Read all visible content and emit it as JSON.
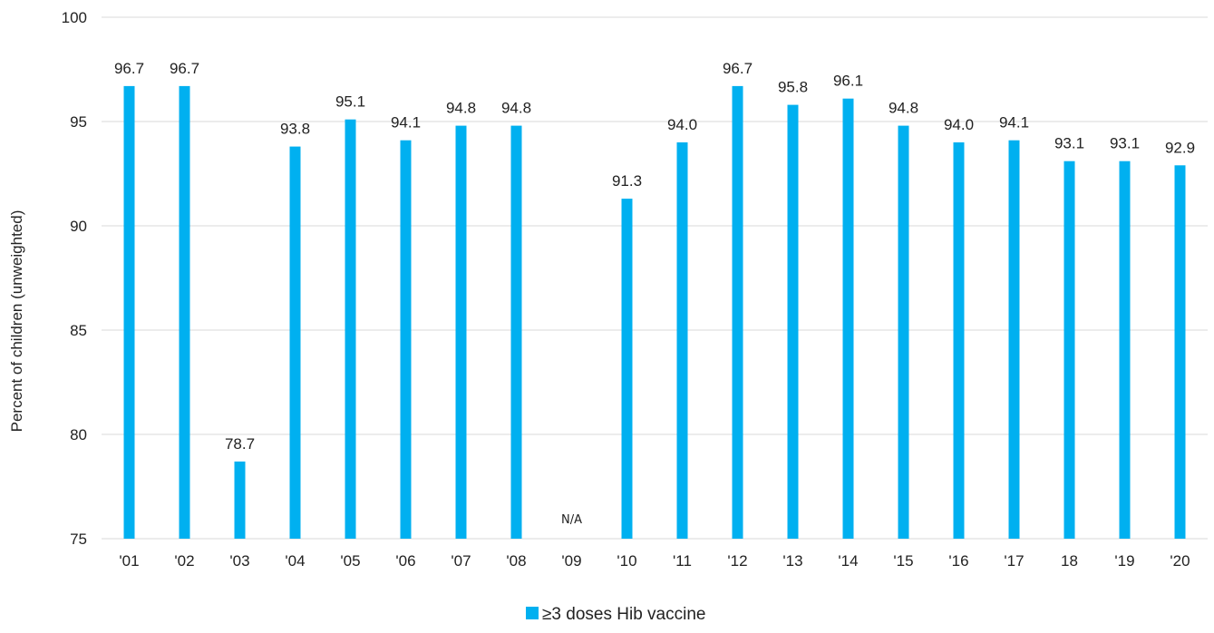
{
  "chart_data": {
    "type": "bar",
    "title": "",
    "xlabel": "",
    "ylabel": "Percent of children (unweighted)",
    "ylim": [
      75,
      100
    ],
    "yticks": [
      75,
      80,
      85,
      90,
      95,
      100
    ],
    "grid": true,
    "legend_position": "bottom-center",
    "bar_color": "#00B0F0",
    "grid_color": "#d9d9d9",
    "categories": [
      "'01",
      "'02",
      "'03",
      "'04",
      "'05",
      "'06",
      "'07",
      "'08",
      "'09",
      "'10",
      "'11",
      "'12",
      "'13",
      "'14",
      "'15",
      "'16",
      "'17",
      "18",
      "'19",
      "'20"
    ],
    "series": [
      {
        "name": "≥3 doses Hib vaccine",
        "values": [
          96.7,
          96.7,
          78.7,
          93.8,
          95.1,
          94.1,
          94.8,
          94.8,
          null,
          91.3,
          94.0,
          96.7,
          95.8,
          96.1,
          94.8,
          94.0,
          94.1,
          93.1,
          93.1,
          92.9
        ],
        "labels": [
          "96.7",
          "96.7",
          "78.7",
          "93.8",
          "95.1",
          "94.1",
          "94.8",
          "94.8",
          "N/A",
          "91.3",
          "94.0",
          "96.7",
          "95.8",
          "96.1",
          "94.8",
          "94.0",
          "94.1",
          "93.1",
          "93.1",
          "92.9"
        ]
      }
    ]
  }
}
